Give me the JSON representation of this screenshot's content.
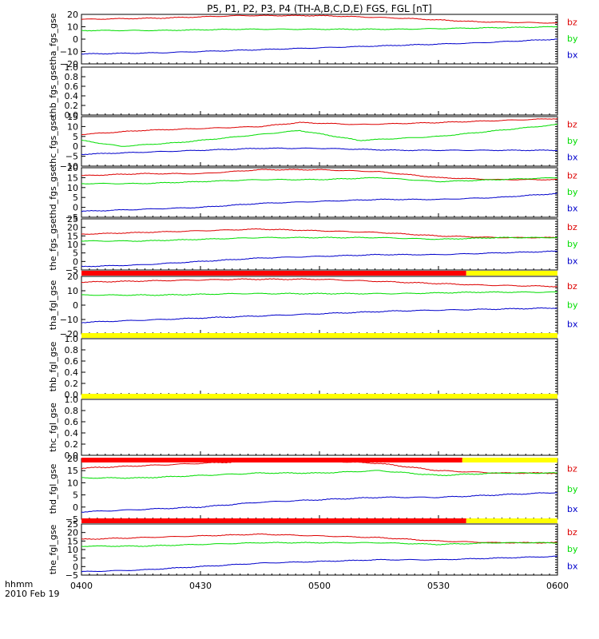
{
  "title": "P5, P1, P2, P3, P4 (TH-A,B,C,D,E) FGS, FGL [nT]",
  "footer": {
    "time_label": "hhmm",
    "date_label": "2010 Feb 19"
  },
  "colors": {
    "bz": "#dd0000",
    "by": "#00dd00",
    "bx": "#0000cc",
    "bar_red": "#ff0000",
    "bar_yellow": "#ffff00"
  },
  "chart_data": {
    "type": "line",
    "x_ticks": [
      "0400",
      "0430",
      "0500",
      "0530",
      "0600"
    ],
    "x_range_minutes": [
      0,
      120
    ],
    "quality_bars": [
      {
        "above_panel": 5,
        "red_until_min": 97,
        "yellow_after": true
      },
      {
        "above_panel": 6,
        "red_until_min": 0,
        "yellow_after": true
      },
      {
        "above_panel": 7,
        "red_until_min": 0,
        "yellow_after": true
      },
      {
        "above_panel": 8,
        "red_until_min": 96,
        "yellow_after": true
      },
      {
        "above_panel": 9,
        "red_until_min": 97,
        "yellow_after": true
      }
    ],
    "panels": [
      {
        "ylabel": "tha_fgs_gse",
        "ylim": [
          -20,
          20
        ],
        "yticks": [
          "−20",
          "−10",
          "0",
          "10",
          "20"
        ],
        "ytick_vals": [
          -20,
          -10,
          0,
          10,
          20
        ],
        "series": [
          {
            "name": "bz",
            "x": [
              0,
              20,
              40,
              60,
              80,
              100,
              120
            ],
            "y": [
              16,
              17,
              19,
              19,
              17,
              14,
              13
            ]
          },
          {
            "name": "by",
            "x": [
              0,
              20,
              40,
              60,
              80,
              100,
              120
            ],
            "y": [
              7,
              7,
              8,
              8,
              8,
              9,
              10
            ]
          },
          {
            "name": "bx",
            "x": [
              0,
              20,
              40,
              60,
              80,
              100,
              120
            ],
            "y": [
              -12,
              -11,
              -9,
              -7,
              -5,
              -3,
              0
            ]
          }
        ]
      },
      {
        "ylabel": "thb_fgs_gse",
        "ylim": [
          0,
          1
        ],
        "yticks": [
          "0.0",
          "0.2",
          "0.4",
          "0.6",
          "0.8",
          "1.0"
        ],
        "ytick_vals": [
          0,
          0.2,
          0.4,
          0.6,
          0.8,
          1.0
        ],
        "series": []
      },
      {
        "ylabel": "thc_fgs_gse",
        "ylim": [
          -10,
          15
        ],
        "yticks": [
          "−10",
          "−5",
          "0",
          "5",
          "10",
          "15"
        ],
        "ytick_vals": [
          -10,
          -5,
          0,
          5,
          10,
          15
        ],
        "series": [
          {
            "name": "bz",
            "x": [
              0,
              15,
              30,
              45,
              55,
              70,
              90,
              105,
              120
            ],
            "y": [
              6,
              8,
              9,
              10,
              12,
              11,
              12,
              13,
              14
            ]
          },
          {
            "name": "by",
            "x": [
              0,
              10,
              25,
              40,
              55,
              70,
              90,
              105,
              120
            ],
            "y": [
              3,
              0,
              2,
              5,
              8,
              3,
              5,
              8,
              11
            ]
          },
          {
            "name": "bx",
            "x": [
              0,
              15,
              30,
              45,
              60,
              80,
              100,
              120
            ],
            "y": [
              -4,
              -3,
              -2,
              -1,
              -1,
              -2,
              -2,
              -2
            ]
          }
        ]
      },
      {
        "ylabel": "thd_fgs_gse",
        "ylim": [
          -5,
          20
        ],
        "yticks": [
          "−5",
          "0",
          "5",
          "10",
          "15",
          "20"
        ],
        "ytick_vals": [
          -5,
          0,
          5,
          10,
          15,
          20
        ],
        "series": [
          {
            "name": "bz",
            "x": [
              0,
              15,
              30,
              45,
              60,
              75,
              90,
              105,
              120
            ],
            "y": [
              16,
              17,
              17,
              19,
              19,
              18,
              15,
              14,
              14
            ]
          },
          {
            "name": "by",
            "x": [
              0,
              15,
              30,
              45,
              60,
              75,
              90,
              105,
              120
            ],
            "y": [
              12,
              12,
              13,
              14,
              14,
              15,
              13,
              14,
              15
            ]
          },
          {
            "name": "bx",
            "x": [
              0,
              15,
              30,
              45,
              60,
              75,
              90,
              105,
              120
            ],
            "y": [
              -2,
              -1,
              0,
              2,
              3,
              4,
              4,
              5,
              7
            ]
          }
        ]
      },
      {
        "ylabel": "the_fgs_gse",
        "ylim": [
          -5,
          25
        ],
        "yticks": [
          "−5",
          "0",
          "5",
          "10",
          "15",
          "20",
          "25"
        ],
        "ytick_vals": [
          -5,
          0,
          5,
          10,
          15,
          20,
          25
        ],
        "series": [
          {
            "name": "bz",
            "x": [
              0,
              15,
              30,
              45,
              60,
              75,
              90,
              105,
              120
            ],
            "y": [
              16,
              17,
              18,
              19,
              18,
              17,
              15,
              14,
              14
            ]
          },
          {
            "name": "by",
            "x": [
              0,
              15,
              30,
              45,
              60,
              75,
              90,
              105,
              120
            ],
            "y": [
              12,
              12,
              13,
              14,
              14,
              14,
              13,
              14,
              14
            ]
          },
          {
            "name": "bx",
            "x": [
              0,
              15,
              30,
              45,
              60,
              75,
              90,
              105,
              120
            ],
            "y": [
              -3,
              -2,
              0,
              2,
              3,
              4,
              4,
              5,
              6
            ]
          }
        ]
      },
      {
        "ylabel": "tha_fgl_gse",
        "ylim": [
          -20,
          20
        ],
        "yticks": [
          "−20",
          "−10",
          "0",
          "10",
          "20"
        ],
        "ytick_vals": [
          -20,
          -10,
          0,
          10,
          20
        ],
        "series": [
          {
            "name": "bz",
            "x": [
              0,
              20,
              40,
              60,
              80,
              100,
              120
            ],
            "y": [
              16,
              17,
              18,
              18,
              16,
              14,
              13
            ]
          },
          {
            "name": "by",
            "x": [
              0,
              20,
              40,
              60,
              80,
              100,
              120
            ],
            "y": [
              7,
              7,
              8,
              8,
              8,
              9,
              9
            ]
          },
          {
            "name": "bx",
            "x": [
              0,
              20,
              40,
              60,
              80,
              100,
              120
            ],
            "y": [
              -12,
              -10,
              -8,
              -6,
              -4,
              -3,
              -2
            ]
          }
        ]
      },
      {
        "ylabel": "thb_fgl_gse",
        "ylim": [
          0,
          1
        ],
        "yticks": [
          "0.0",
          "0.2",
          "0.4",
          "0.6",
          "0.8",
          "1.0"
        ],
        "ytick_vals": [
          0,
          0.2,
          0.4,
          0.6,
          0.8,
          1.0
        ],
        "series": []
      },
      {
        "ylabel": "thc_fgl_gse",
        "ylim": [
          0,
          1
        ],
        "yticks": [
          "0.0",
          "0.2",
          "0.4",
          "0.6",
          "0.8",
          "1.0"
        ],
        "ytick_vals": [
          0,
          0.2,
          0.4,
          0.6,
          0.8,
          1.0
        ],
        "series": []
      },
      {
        "ylabel": "thd_fgl_gse",
        "ylim": [
          -5,
          20
        ],
        "yticks": [
          "−5",
          "0",
          "5",
          "10",
          "15",
          "20"
        ],
        "ytick_vals": [
          -5,
          0,
          5,
          10,
          15,
          20
        ],
        "series": [
          {
            "name": "bz",
            "x": [
              0,
              15,
              30,
              45,
              60,
              75,
              90,
              105,
              120
            ],
            "y": [
              16,
              17,
              18,
              19,
              19,
              18,
              15,
              14,
              14
            ]
          },
          {
            "name": "by",
            "x": [
              0,
              15,
              30,
              45,
              60,
              75,
              90,
              105,
              120
            ],
            "y": [
              12,
              12,
              13,
              14,
              14,
              15,
              13,
              14,
              14
            ]
          },
          {
            "name": "bx",
            "x": [
              0,
              15,
              30,
              45,
              60,
              75,
              90,
              105,
              120
            ],
            "y": [
              -2,
              -1,
              0,
              2,
              3,
              4,
              4,
              5,
              6
            ]
          }
        ]
      },
      {
        "ylabel": "the_fgl_gse",
        "ylim": [
          -5,
          25
        ],
        "yticks": [
          "−5",
          "0",
          "5",
          "10",
          "15",
          "20",
          "25"
        ],
        "ytick_vals": [
          -5,
          0,
          5,
          10,
          15,
          20,
          25
        ],
        "series": [
          {
            "name": "bz",
            "x": [
              0,
              15,
              30,
              45,
              60,
              75,
              90,
              105,
              120
            ],
            "y": [
              16,
              17,
              18,
              19,
              18,
              17,
              15,
              14,
              14
            ]
          },
          {
            "name": "by",
            "x": [
              0,
              15,
              30,
              45,
              60,
              75,
              90,
              105,
              120
            ],
            "y": [
              12,
              12,
              13,
              14,
              14,
              14,
              13,
              14,
              14
            ]
          },
          {
            "name": "bx",
            "x": [
              0,
              15,
              30,
              45,
              60,
              75,
              90,
              105,
              120
            ],
            "y": [
              -3,
              -2,
              0,
              2,
              3,
              4,
              4,
              5,
              6
            ]
          }
        ]
      }
    ]
  }
}
